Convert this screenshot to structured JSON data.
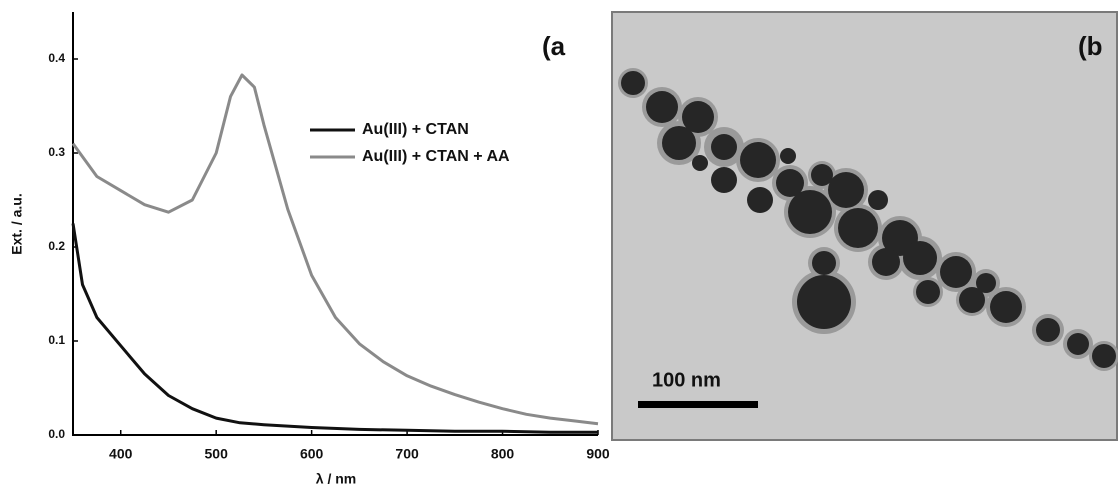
{
  "chart_data": {
    "type": "line",
    "annotation": "(a",
    "xlabel": "λ / nm",
    "ylabel": "Ext. / a.u.",
    "xlim": [
      350,
      900
    ],
    "xticks": [
      400,
      500,
      600,
      700,
      800,
      900
    ],
    "ylim": [
      0,
      0.45
    ],
    "yticks": [
      {
        "value": 0,
        "label": "0.0"
      },
      0.1,
      0.2,
      0.3,
      0.4
    ],
    "legend": "upper right",
    "series": [
      {
        "name": "Au(III) + CTAN",
        "color": "#111111",
        "x": [
          350,
          360,
          375,
          400,
          425,
          450,
          475,
          500,
          525,
          550,
          600,
          650,
          700,
          750,
          800,
          850,
          900
        ],
        "values": [
          0.225,
          0.16,
          0.125,
          0.095,
          0.065,
          0.042,
          0.028,
          0.018,
          0.013,
          0.011,
          0.008,
          0.006,
          0.005,
          0.004,
          0.004,
          0.003,
          0.003
        ]
      },
      {
        "name": "Au(III) + CTAN + AA",
        "color": "#8a8a8a",
        "x": [
          350,
          375,
          400,
          425,
          450,
          475,
          500,
          515,
          527,
          540,
          550,
          575,
          600,
          625,
          650,
          675,
          700,
          725,
          750,
          775,
          800,
          825,
          850,
          875,
          900
        ],
        "values": [
          0.31,
          0.275,
          0.26,
          0.245,
          0.237,
          0.25,
          0.3,
          0.36,
          0.383,
          0.37,
          0.33,
          0.24,
          0.17,
          0.125,
          0.097,
          0.078,
          0.063,
          0.052,
          0.043,
          0.035,
          0.028,
          0.022,
          0.018,
          0.015,
          0.012
        ]
      }
    ]
  },
  "image_panel": {
    "label": "(b",
    "scale_bar": "100 nm"
  }
}
